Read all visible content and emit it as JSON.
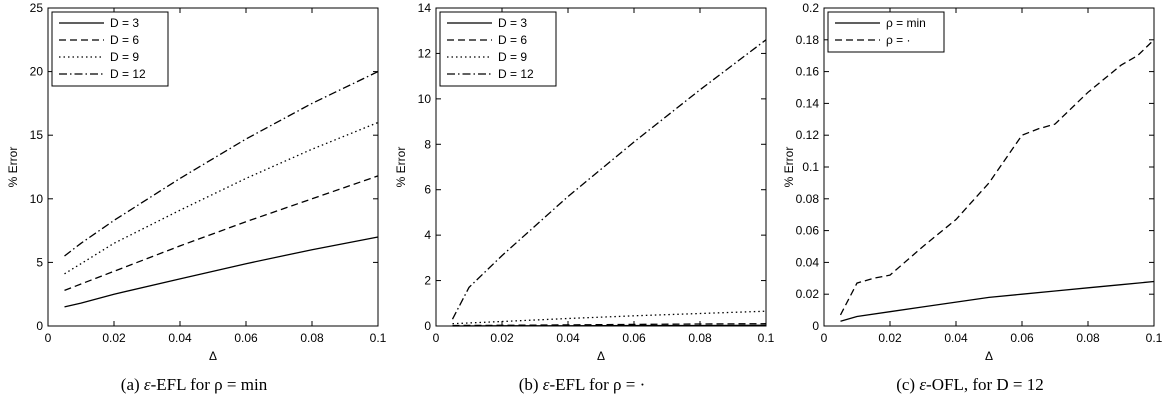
{
  "chart_data": [
    {
      "type": "line",
      "caption_prefix": "(a) ",
      "caption_symbol": "ε",
      "caption_rest": "-EFL for ρ = min",
      "xlabel": "Δ",
      "ylabel": "% Error",
      "xlim": [
        0,
        0.1
      ],
      "ylim": [
        0,
        25
      ],
      "xticks": [
        "0",
        "0.02",
        "0.04",
        "0.06",
        "0.08",
        "0.1"
      ],
      "yticks": [
        "0",
        "5",
        "10",
        "15",
        "20",
        "25"
      ],
      "legend_position": "top-left",
      "series": [
        {
          "name": "D = 3",
          "style": "solid",
          "x": [
            0.005,
            0.01,
            0.02,
            0.04,
            0.06,
            0.08,
            0.1
          ],
          "y": [
            1.5,
            1.8,
            2.5,
            3.7,
            4.9,
            6.0,
            7.0
          ]
        },
        {
          "name": "D = 6",
          "style": "dashed",
          "x": [
            0.005,
            0.01,
            0.02,
            0.04,
            0.06,
            0.08,
            0.1
          ],
          "y": [
            2.8,
            3.3,
            4.3,
            6.3,
            8.2,
            10.0,
            11.8
          ]
        },
        {
          "name": "D = 9",
          "style": "dotted",
          "x": [
            0.005,
            0.01,
            0.02,
            0.04,
            0.06,
            0.08,
            0.1
          ],
          "y": [
            4.1,
            4.9,
            6.5,
            9.1,
            11.6,
            13.9,
            16.0
          ]
        },
        {
          "name": "D = 12",
          "style": "dashdot",
          "x": [
            0.005,
            0.01,
            0.02,
            0.04,
            0.06,
            0.08,
            0.1
          ],
          "y": [
            5.5,
            6.5,
            8.3,
            11.6,
            14.7,
            17.5,
            20.0
          ]
        }
      ]
    },
    {
      "type": "line",
      "caption_prefix": "(b) ",
      "caption_symbol": "ε",
      "caption_rest": "-EFL for ρ = ·",
      "xlabel": "Δ",
      "ylabel": "% Error",
      "xlim": [
        0,
        0.1
      ],
      "ylim": [
        0,
        14
      ],
      "xticks": [
        "0",
        "0.02",
        "0.04",
        "0.06",
        "0.08",
        "0.1"
      ],
      "yticks": [
        "0",
        "2",
        "4",
        "6",
        "8",
        "10",
        "12",
        "14"
      ],
      "legend_position": "top-left",
      "series": [
        {
          "name": "D = 3",
          "style": "solid",
          "x": [
            0.005,
            0.02,
            0.04,
            0.06,
            0.08,
            0.1
          ],
          "y": [
            0.0,
            0.01,
            0.01,
            0.02,
            0.02,
            0.03
          ]
        },
        {
          "name": "D = 6",
          "style": "dashed",
          "x": [
            0.005,
            0.02,
            0.04,
            0.06,
            0.08,
            0.1
          ],
          "y": [
            0.02,
            0.03,
            0.05,
            0.07,
            0.09,
            0.1
          ]
        },
        {
          "name": "D = 9",
          "style": "dotted",
          "x": [
            0.005,
            0.02,
            0.04,
            0.06,
            0.08,
            0.1
          ],
          "y": [
            0.1,
            0.2,
            0.33,
            0.45,
            0.55,
            0.65
          ]
        },
        {
          "name": "D = 12",
          "style": "dashdot",
          "x": [
            0.005,
            0.01,
            0.02,
            0.04,
            0.06,
            0.08,
            0.1
          ],
          "y": [
            0.3,
            1.7,
            3.1,
            5.7,
            8.1,
            10.4,
            12.6
          ]
        }
      ]
    },
    {
      "type": "line",
      "caption_prefix": "(c) ",
      "caption_symbol": "ε",
      "caption_rest": "-OFL, for D = 12",
      "xlabel": "Δ",
      "ylabel": "% Error",
      "xlim": [
        0,
        0.1
      ],
      "ylim": [
        0,
        0.2
      ],
      "xticks": [
        "0",
        "0.02",
        "0.04",
        "0.06",
        "0.08",
        "0.1"
      ],
      "yticks": [
        "0",
        "0.02",
        "0.04",
        "0.06",
        "0.08",
        "0.1",
        "0.12",
        "0.14",
        "0.16",
        "0.18",
        "0.2"
      ],
      "legend_position": "top-left",
      "series": [
        {
          "name": "ρ = min",
          "style": "solid",
          "x": [
            0.005,
            0.01,
            0.02,
            0.03,
            0.04,
            0.05,
            0.06,
            0.07,
            0.08,
            0.09,
            0.1
          ],
          "y": [
            0.003,
            0.006,
            0.009,
            0.012,
            0.015,
            0.018,
            0.02,
            0.022,
            0.024,
            0.026,
            0.028
          ]
        },
        {
          "name": "ρ = ·",
          "style": "dashed",
          "x": [
            0.005,
            0.01,
            0.015,
            0.02,
            0.03,
            0.04,
            0.05,
            0.06,
            0.065,
            0.07,
            0.08,
            0.09,
            0.095,
            0.1
          ],
          "y": [
            0.007,
            0.027,
            0.03,
            0.032,
            0.05,
            0.067,
            0.09,
            0.12,
            0.124,
            0.127,
            0.147,
            0.164,
            0.17,
            0.18
          ]
        }
      ]
    }
  ]
}
